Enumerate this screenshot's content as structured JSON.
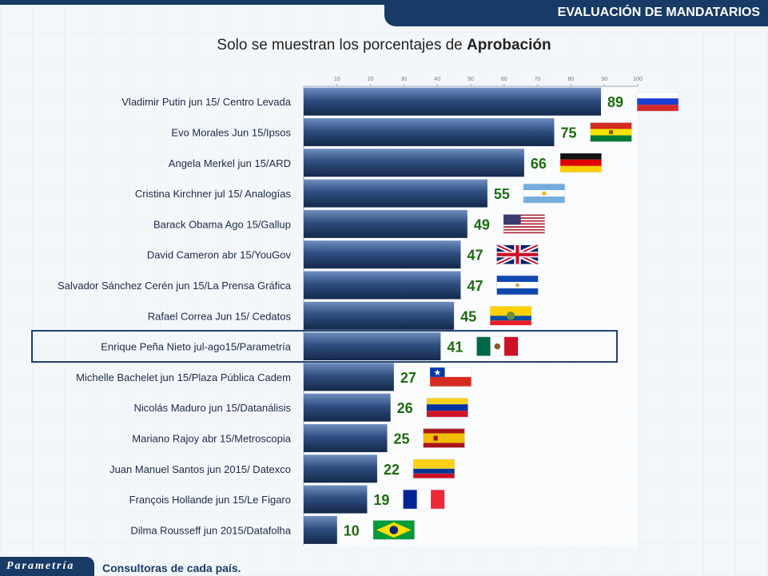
{
  "header": {
    "title": "EVALUACIÓN DE  MANDATARIOS"
  },
  "subtitle": {
    "prefix": "Solo se muestran los porcentajes de ",
    "bold": "Aprobación"
  },
  "footer": {
    "brand": "Parametría",
    "source": "Consultoras de cada país."
  },
  "colors": {
    "bar_top": "#6f8fbf",
    "bar_bottom": "#14284a",
    "value_text": "#1e6b10",
    "highlight_border": "#1f3e6e"
  },
  "chart_data": {
    "type": "bar",
    "orientation": "horizontal",
    "xlim": [
      0,
      100
    ],
    "ticks": [
      "10",
      "20",
      "30",
      "40",
      "50",
      "60",
      "70",
      "80",
      "90",
      "100"
    ],
    "highlight": "Enrique Peña Nieto jul-ago15/Parametría",
    "categories": [
      "Vladimir Putin jun 15/ Centro Levada",
      "Evo Morales Jun 15/Ipsos",
      "Angela Merkel jun 15/ARD",
      "Cristina Kirchner  jul 15/ Analogías",
      "Barack Obama Ago 15/Gallup",
      "David Cameron  abr 15/YouGov",
      "Salvador Sánchez Cerén jun 15/La Prensa Gráfica",
      "Rafael Correa Jun 15/ Cedatos",
      "Enrique Peña Nieto jul-ago15/Parametría",
      "Michelle Bachelet jun 15/Plaza Pública Cadem",
      "Nicolás Maduro jun 15/Datanálisis",
      "Mariano Rajoy abr 15/Metroscopia",
      "Juan Manuel Santos jun 2015/ Datexco",
      "François Hollande jun 15/Le Figaro",
      "Dilma Rousseff jun 2015/Datafolha"
    ],
    "values": [
      89,
      75,
      66,
      55,
      49,
      47,
      47,
      45,
      41,
      27,
      26,
      25,
      22,
      19,
      10
    ],
    "flags": [
      "russia-flag",
      "bolivia-flag",
      "germany-flag",
      "argentina-flag",
      "usa-flag",
      "uk-flag",
      "el-salvador-flag",
      "ecuador-flag",
      "mexico-flag",
      "chile-flag",
      "venezuela-flag",
      "spain-flag",
      "colombia-flag",
      "france-flag",
      "brazil-flag"
    ]
  }
}
